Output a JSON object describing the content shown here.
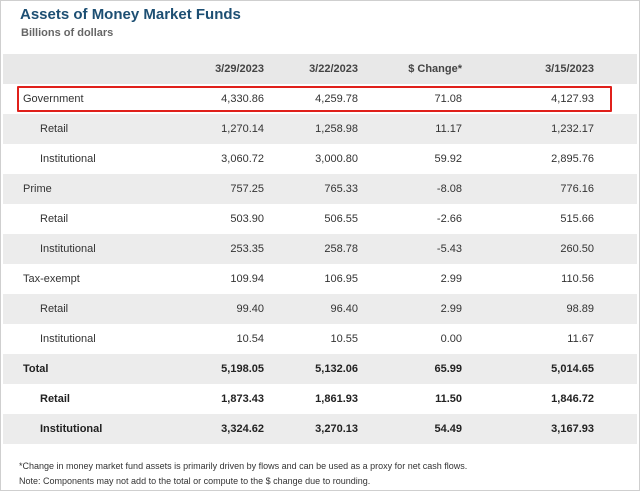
{
  "title": "Assets of Money Market Funds",
  "subtitle": "Billions of dollars",
  "columns": [
    "",
    "3/29/2023",
    "3/22/2023",
    "$ Change*",
    "3/15/2023"
  ],
  "rows": [
    {
      "label": "Government",
      "v1": "4,330.86",
      "v2": "4,259.78",
      "v3": "71.08",
      "v4": "4,127.93"
    },
    {
      "label": "Retail",
      "v1": "1,270.14",
      "v2": "1,258.98",
      "v3": "11.17",
      "v4": "1,232.17"
    },
    {
      "label": "Institutional",
      "v1": "3,060.72",
      "v2": "3,000.80",
      "v3": "59.92",
      "v4": "2,895.76"
    },
    {
      "label": "Prime",
      "v1": "757.25",
      "v2": "765.33",
      "v3": "-8.08",
      "v4": "776.16"
    },
    {
      "label": "Retail",
      "v1": "503.90",
      "v2": "506.55",
      "v3": "-2.66",
      "v4": "515.66"
    },
    {
      "label": "Institutional",
      "v1": "253.35",
      "v2": "258.78",
      "v3": "-5.43",
      "v4": "260.50"
    },
    {
      "label": "Tax-exempt",
      "v1": "109.94",
      "v2": "106.95",
      "v3": "2.99",
      "v4": "110.56"
    },
    {
      "label": "Retail",
      "v1": "99.40",
      "v2": "96.40",
      "v3": "2.99",
      "v4": "98.89"
    },
    {
      "label": "Institutional",
      "v1": "10.54",
      "v2": "10.55",
      "v3": "0.00",
      "v4": "11.67"
    },
    {
      "label": "Total",
      "v1": "5,198.05",
      "v2": "5,132.06",
      "v3": "65.99",
      "v4": "5,014.65"
    },
    {
      "label": "Retail",
      "v1": "1,873.43",
      "v2": "1,861.93",
      "v3": "11.50",
      "v4": "1,846.72"
    },
    {
      "label": "Institutional",
      "v1": "3,324.62",
      "v2": "3,270.13",
      "v3": "54.49",
      "v4": "3,167.93"
    }
  ],
  "footnotes": [
    "*Change in money market fund assets is primarily driven by flows and can be used as a proxy for net cash flows.",
    "Note: Components may not add to the total or compute to the $ change due to rounding."
  ],
  "highlight_color": "#e0201b"
}
